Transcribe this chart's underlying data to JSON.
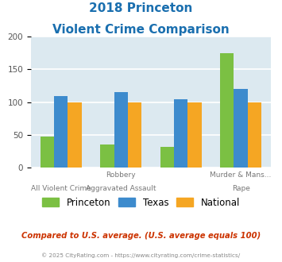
{
  "title_line1": "2018 Princeton",
  "title_line2": "Violent Crime Comparison",
  "princeton": [
    48,
    35,
    32,
    175
  ],
  "texas": [
    109,
    115,
    105,
    120
  ],
  "national": [
    100,
    100,
    100,
    100
  ],
  "princeton_color": "#7bc043",
  "texas_color": "#3d8bcd",
  "national_color": "#f5a623",
  "ylim": [
    0,
    200
  ],
  "yticks": [
    0,
    50,
    100,
    150,
    200
  ],
  "bg_color": "#dce9f0",
  "grid_color": "#ffffff",
  "title_color": "#1a6faf",
  "top_labels": [
    "",
    "Robbery",
    "",
    "Murder & Mans..."
  ],
  "bot_labels": [
    "All Violent Crime",
    "Aggravated Assault",
    "",
    "Rape"
  ],
  "footer_text": "Compared to U.S. average. (U.S. average equals 100)",
  "footer_color": "#cc3300",
  "credit_text": "© 2025 CityRating.com - https://www.cityrating.com/crime-statistics/",
  "credit_color": "#888888",
  "legend_labels": [
    "Princeton",
    "Texas",
    "National"
  ]
}
